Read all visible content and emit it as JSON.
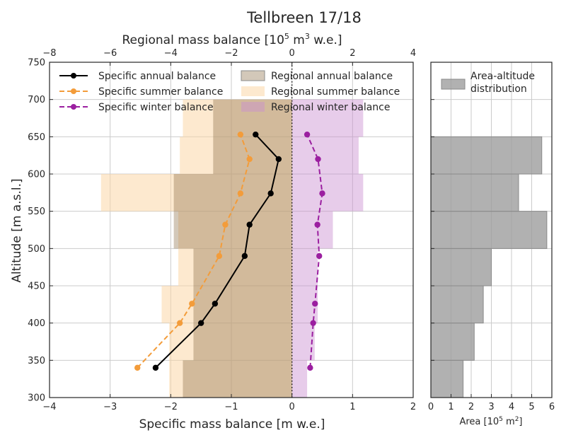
{
  "chart_data": {
    "type": "line",
    "title": "Tellbreen 17/18",
    "main_axes": {
      "xlabel_bottom": "Specific mass balance [m w.e.]",
      "xlabel_top_prefix": "Regional mass balance [10",
      "xlabel_top_exp": "5",
      "xlabel_top_mid": " m",
      "xlabel_top_exp2": "3",
      "xlabel_top_suffix": " w.e.]",
      "ylabel": "Altitude [m a.s.l.]",
      "xlim_bottom": [
        -4,
        2
      ],
      "xticks_bottom": [
        "−4",
        "−3",
        "−2",
        "−1",
        "0",
        "1",
        "2"
      ],
      "xlim_top": [
        -8,
        4
      ],
      "xticks_top": [
        "−8",
        "−6",
        "−4",
        "−2",
        "0",
        "2",
        "4"
      ],
      "ylim": [
        300,
        750
      ],
      "yticks": [
        "300",
        "350",
        "400",
        "450",
        "500",
        "550",
        "600",
        "650",
        "700",
        "750"
      ],
      "grid": true,
      "zero_line": "dotted"
    },
    "bands": [
      300,
      350,
      400,
      450,
      500,
      550,
      600,
      650
    ],
    "regional": {
      "units": "10^5 m^3 w.e.",
      "annual": [
        -3.6,
        -3.25,
        -3.25,
        -3.25,
        -3.9,
        -3.9,
        -2.6,
        -2.6
      ],
      "summer": [
        -4.05,
        -4.05,
        -4.3,
        -3.75,
        -3.75,
        -6.3,
        -3.7,
        -3.6
      ],
      "winter": [
        0.5,
        0.75,
        0.85,
        0.85,
        1.35,
        2.35,
        2.2,
        2.35
      ]
    },
    "series": [
      {
        "name": "Specific annual balance",
        "color": "#000000",
        "dash": "solid",
        "x": [
          -2.25,
          -1.5,
          -1.27,
          -0.78,
          -0.7,
          -0.35,
          -0.22,
          -0.6
        ],
        "y": [
          340,
          400,
          426,
          490,
          532,
          574,
          620,
          653
        ]
      },
      {
        "name": "Specific summer balance",
        "color": "#f39c3a",
        "dash": "dashed",
        "x": [
          -2.55,
          -1.85,
          -1.65,
          -1.2,
          -1.1,
          -0.85,
          -0.7,
          -0.85
        ],
        "y": [
          340,
          400,
          426,
          490,
          532,
          574,
          620,
          653
        ]
      },
      {
        "name": "Specific winter balance",
        "color": "#9b1fa0",
        "dash": "dashed",
        "x": [
          0.3,
          0.35,
          0.38,
          0.45,
          0.42,
          0.5,
          0.43,
          0.25
        ],
        "y": [
          340,
          400,
          426,
          490,
          532,
          574,
          620,
          653
        ]
      }
    ],
    "legend": {
      "position": "top",
      "items": [
        {
          "label": "Specific annual balance",
          "kind": "line",
          "color": "#000000"
        },
        {
          "label": "Specific summer balance",
          "kind": "line",
          "color": "#f39c3a"
        },
        {
          "label": "Specific winter balance",
          "kind": "line",
          "color": "#9b1fa0"
        },
        {
          "label": "Regional annual balance",
          "kind": "patch",
          "color": "#8b6f47"
        },
        {
          "label": "Regional summer balance",
          "kind": "patch",
          "color": "#fde3c4"
        },
        {
          "label": "Regional winter balance",
          "kind": "patch",
          "color": "#dcb3df"
        }
      ]
    },
    "area_axes": {
      "xlabel_prefix": "Area [10",
      "xlabel_exp": "5",
      "xlabel_suffix": " m",
      "xlabel_exp2": "2",
      "xlabel_end": "]",
      "xlim": [
        0,
        6
      ],
      "xticks": [
        "0",
        "1",
        "2",
        "3",
        "4",
        "5",
        "6"
      ],
      "legend_label": "Area-altitude\ndistribution",
      "values": [
        1.6,
        2.15,
        2.6,
        3.0,
        5.75,
        4.35,
        5.5,
        0
      ],
      "color": "#9e9e9e"
    }
  }
}
